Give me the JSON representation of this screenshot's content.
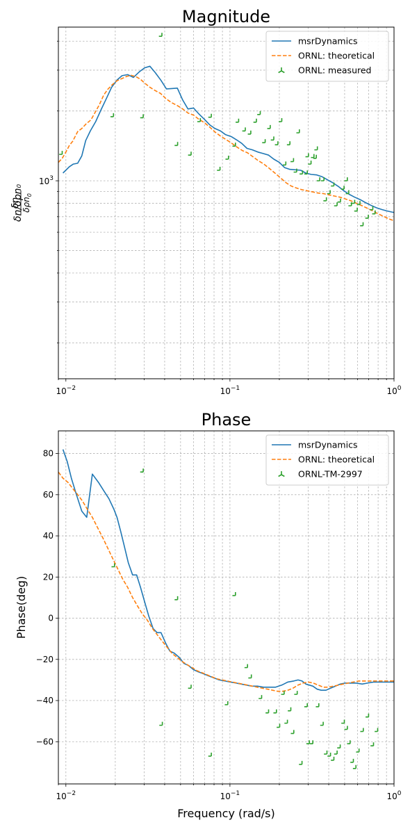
{
  "chart_data": [
    {
      "type": "line",
      "title": "Magnitude",
      "xlabel": "",
      "ylabel": "δn/δρn₀",
      "xscale": "log",
      "yscale": "log",
      "xlim": [
        0.009,
        1.0
      ],
      "ylim": [
        140,
        4600
      ],
      "x_ticks": [
        {
          "v": 0.01,
          "base": "10",
          "exp": "−2"
        },
        {
          "v": 0.1,
          "base": "10",
          "exp": "−1"
        },
        {
          "v": 1,
          "base": "10",
          "exp": "0"
        }
      ],
      "y_ticks": [
        {
          "v": 1000,
          "base": "10",
          "exp": "3"
        }
      ],
      "grid": true,
      "legend_position": "top-right",
      "series": [
        {
          "name": "msrDynamics",
          "style": "solid",
          "color": "#1f77b4",
          "x": [
            0.0096,
            0.0105,
            0.0111,
            0.0118,
            0.0125,
            0.0132,
            0.0141,
            0.0152,
            0.0163,
            0.0177,
            0.019,
            0.0205,
            0.022,
            0.0238,
            0.0258,
            0.028,
            0.0302,
            0.0325,
            0.035,
            0.038,
            0.041,
            0.0442,
            0.0478,
            0.0515,
            0.0555,
            0.06,
            0.0647,
            0.07,
            0.0755,
            0.081,
            0.0875,
            0.094,
            0.102,
            0.11,
            0.118,
            0.127,
            0.137,
            0.148,
            0.16,
            0.172,
            0.185,
            0.2,
            0.215,
            0.232,
            0.25,
            0.27,
            0.29,
            0.313,
            0.338,
            0.365,
            0.393,
            0.424,
            0.458,
            0.495,
            0.532,
            0.575,
            0.62,
            0.67,
            0.72,
            0.78,
            0.84,
            0.9,
            0.97,
            1.0
          ],
          "y": [
            1080,
            1150,
            1180,
            1190,
            1280,
            1490,
            1640,
            1800,
            2010,
            2270,
            2530,
            2720,
            2840,
            2870,
            2790,
            2950,
            3070,
            3120,
            2930,
            2710,
            2490,
            2500,
            2510,
            2230,
            2040,
            2060,
            1940,
            1840,
            1740,
            1680,
            1640,
            1580,
            1550,
            1500,
            1450,
            1380,
            1360,
            1330,
            1310,
            1290,
            1240,
            1200,
            1140,
            1120,
            1115,
            1110,
            1080,
            1065,
            1060,
            1040,
            1010,
            980,
            945,
            905,
            875,
            850,
            830,
            805,
            785,
            765,
            752,
            742,
            733,
            730
          ]
        },
        {
          "name": "ORNL: theoretical",
          "style": "dashed",
          "color": "#ff7f0e",
          "x": [
            0.009,
            0.0095,
            0.01,
            0.0105,
            0.011,
            0.0118,
            0.0125,
            0.0133,
            0.0142,
            0.015,
            0.016,
            0.017,
            0.018,
            0.0192,
            0.0205,
            0.022,
            0.0235,
            0.025,
            0.0268,
            0.0285,
            0.0302,
            0.0325,
            0.035,
            0.0378,
            0.041,
            0.0443,
            0.0478,
            0.0515,
            0.0555,
            0.06,
            0.0648,
            0.07,
            0.0755,
            0.0813,
            0.0875,
            0.094,
            0.1015,
            0.11,
            0.119,
            0.128,
            0.138,
            0.149,
            0.161,
            0.174,
            0.188,
            0.203,
            0.22,
            0.236,
            0.255,
            0.275,
            0.297,
            0.32,
            0.345,
            0.372,
            0.4,
            0.432,
            0.468,
            0.505,
            0.545,
            0.59,
            0.64,
            0.69,
            0.745,
            0.8,
            0.865,
            0.93,
            1.0
          ],
          "y": [
            1200,
            1250,
            1330,
            1420,
            1480,
            1630,
            1680,
            1760,
            1830,
            1960,
            2130,
            2340,
            2480,
            2600,
            2700,
            2760,
            2820,
            2850,
            2810,
            2740,
            2640,
            2530,
            2450,
            2380,
            2250,
            2170,
            2110,
            2040,
            1960,
            1920,
            1840,
            1780,
            1700,
            1620,
            1560,
            1510,
            1460,
            1400,
            1350,
            1320,
            1270,
            1220,
            1180,
            1130,
            1080,
            1030,
            980,
            950,
            930,
            915,
            905,
            895,
            885,
            880,
            870,
            860,
            850,
            835,
            820,
            800,
            780,
            760,
            740,
            720,
            702,
            685,
            672
          ]
        },
        {
          "name": "ORNL: measured",
          "style": "marker",
          "color": "#2ca02c",
          "x": [
            0.0095,
            0.0195,
            0.0296,
            0.0385,
            0.048,
            0.058,
            0.066,
            0.077,
            0.087,
            0.098,
            0.108,
            0.113,
            0.124,
            0.134,
            0.145,
            0.153,
            0.164,
            0.176,
            0.185,
            0.196,
            0.207,
            0.219,
            0.232,
            0.244,
            0.255,
            0.265,
            0.277,
            0.296,
            0.301,
            0.312,
            0.325,
            0.336,
            0.341,
            0.353,
            0.374,
            0.387,
            0.408,
            0.43,
            0.45,
            0.472,
            0.496,
            0.519,
            0.53,
            0.55,
            0.576,
            0.597,
            0.62,
            0.648,
            0.697,
            0.743,
            0.768
          ],
          "y": [
            1300,
            1890,
            1870,
            4200,
            1420,
            1290,
            1800,
            1880,
            1110,
            1240,
            1410,
            1790,
            1640,
            1590,
            1790,
            1930,
            1460,
            1680,
            1500,
            1430,
            1800,
            1170,
            1430,
            1210,
            1090,
            1610,
            1070,
            1070,
            1270,
            1180,
            1260,
            1250,
            1360,
            1000,
            1000,
            820,
            880,
            950,
            780,
            810,
            920,
            1000,
            880,
            780,
            800,
            740,
            790,
            640,
            690,
            750,
            720
          ]
        }
      ]
    },
    {
      "type": "line",
      "title": "Phase",
      "xlabel": "Frequency (rad/s)",
      "ylabel": "Phase(deg)",
      "xscale": "log",
      "yscale": "linear",
      "xlim": [
        0.009,
        1.0
      ],
      "ylim": [
        -80.5,
        91
      ],
      "x_ticks": [
        {
          "v": 0.01,
          "base": "10",
          "exp": "−2"
        },
        {
          "v": 0.1,
          "base": "10",
          "exp": "−1"
        },
        {
          "v": 1,
          "base": "10",
          "exp": "0"
        }
      ],
      "y_ticks": [
        {
          "v": 80,
          "label": "80"
        },
        {
          "v": 60,
          "label": "60"
        },
        {
          "v": 40,
          "label": "40"
        },
        {
          "v": 20,
          "label": "20"
        },
        {
          "v": 0,
          "label": "0"
        },
        {
          "v": -20,
          "label": "−20"
        },
        {
          "v": -40,
          "label": "−40"
        },
        {
          "v": -60,
          "label": "−60"
        }
      ],
      "grid": true,
      "legend_position": "top-right",
      "series": [
        {
          "name": "msrDynamics",
          "style": "solid",
          "color": "#1f77b4",
          "x": [
            0.0096,
            0.0102,
            0.0108,
            0.0116,
            0.0125,
            0.0134,
            0.0145,
            0.0158,
            0.017,
            0.0183,
            0.0196,
            0.0205,
            0.0216,
            0.0227,
            0.024,
            0.0255,
            0.027,
            0.0285,
            0.0302,
            0.032,
            0.034,
            0.036,
            0.038,
            0.0405,
            0.043,
            0.0458,
            0.049,
            0.0525,
            0.056,
            0.06,
            0.064,
            0.069,
            0.074,
            0.08,
            0.086,
            0.093,
            0.101,
            0.109,
            0.117,
            0.126,
            0.136,
            0.147,
            0.16,
            0.174,
            0.19,
            0.207,
            0.225,
            0.245,
            0.26,
            0.275,
            0.29,
            0.305,
            0.32,
            0.34,
            0.36,
            0.385,
            0.41,
            0.44,
            0.47,
            0.505,
            0.545,
            0.59,
            0.64,
            0.69,
            0.75,
            0.82,
            0.9,
            0.97,
            1.0
          ],
          "y": [
            82,
            76,
            68,
            60,
            52,
            49,
            70,
            66,
            62,
            58,
            53,
            49,
            42,
            35,
            27,
            21,
            21,
            15,
            8,
            1,
            -5,
            -7,
            -7,
            -12,
            -16,
            -17,
            -19,
            -22,
            -23,
            -25,
            -26,
            -27,
            -28,
            -29,
            -30,
            -30.5,
            -31,
            -31.5,
            -32,
            -32.5,
            -33,
            -33,
            -33.5,
            -33.5,
            -33.5,
            -32.5,
            -31,
            -30.5,
            -30,
            -30.5,
            -32,
            -32.5,
            -33,
            -34.5,
            -35,
            -35,
            -34,
            -33,
            -32,
            -31.5,
            -31.5,
            -31.5,
            -32,
            -31.5,
            -31,
            -31,
            -31,
            -31,
            -31
          ]
        },
        {
          "name": "ORNL: theoretical",
          "style": "dashed",
          "color": "#ff7f0e",
          "x": [
            0.009,
            0.0096,
            0.0103,
            0.011,
            0.0118,
            0.0126,
            0.0135,
            0.0145,
            0.0156,
            0.0168,
            0.018,
            0.0193,
            0.0207,
            0.0222,
            0.0238,
            0.0255,
            0.0273,
            0.0293,
            0.0314,
            0.0337,
            0.036,
            0.0385,
            0.0413,
            0.0443,
            0.0475,
            0.051,
            0.0547,
            0.0587,
            0.063,
            0.0676,
            0.0725,
            0.0778,
            0.0835,
            0.0896,
            0.0962,
            0.1032,
            0.111,
            0.119,
            0.128,
            0.137,
            0.147,
            0.158,
            0.17,
            0.182,
            0.195,
            0.21,
            0.225,
            0.242,
            0.26,
            0.279,
            0.3,
            0.322,
            0.345,
            0.37,
            0.398,
            0.427,
            0.46,
            0.49,
            0.525,
            0.565,
            0.61,
            0.66,
            0.71,
            0.77,
            0.83,
            0.9,
            0.97,
            1.0
          ],
          "y": [
            71,
            68,
            66,
            63,
            60,
            57,
            53,
            49,
            44,
            39,
            34,
            29,
            24,
            19,
            15,
            10,
            6,
            2,
            -1,
            -5,
            -8,
            -11,
            -14,
            -17,
            -19,
            -21,
            -22.5,
            -24,
            -25.5,
            -26.5,
            -27.5,
            -28.5,
            -29.5,
            -30,
            -30.5,
            -31,
            -31.5,
            -32,
            -32.5,
            -33,
            -33.5,
            -34,
            -34.5,
            -35,
            -35.5,
            -35.5,
            -35,
            -34,
            -32.5,
            -31.5,
            -31,
            -31.5,
            -32.5,
            -33.5,
            -33.5,
            -33,
            -32.5,
            -32,
            -31.5,
            -31,
            -30.5,
            -30.5,
            -30.5,
            -30.5,
            -30.5,
            -30.5,
            -30.5,
            -30.5
          ]
        },
        {
          "name": "ORNL-TM-2997",
          "style": "marker",
          "color": "#2ca02c",
          "x": [
            0.0198,
            0.0296,
            0.0387,
            0.048,
            0.058,
            0.077,
            0.097,
            0.108,
            0.128,
            0.135,
            0.156,
            0.172,
            0.192,
            0.201,
            0.214,
            0.224,
            0.235,
            0.245,
            0.257,
            0.275,
            0.296,
            0.305,
            0.32,
            0.348,
            0.37,
            0.39,
            0.41,
            0.43,
            0.45,
            0.47,
            0.498,
            0.52,
            0.54,
            0.565,
            0.586,
            0.612,
            0.65,
            0.7,
            0.75,
            0.795
          ],
          "y": [
            25,
            71,
            -52,
            9,
            -34,
            -67,
            -42,
            11,
            -24,
            -29,
            -39,
            -46,
            -46,
            -53,
            -37,
            -51,
            -45,
            -56,
            -37,
            -71,
            -43,
            -61,
            -61,
            -43,
            -52,
            -66,
            -67,
            -69,
            -66,
            -63,
            -51,
            -54,
            -61,
            -70,
            -73,
            -65,
            -55,
            -48,
            -62,
            -55
          ]
        }
      ]
    }
  ]
}
